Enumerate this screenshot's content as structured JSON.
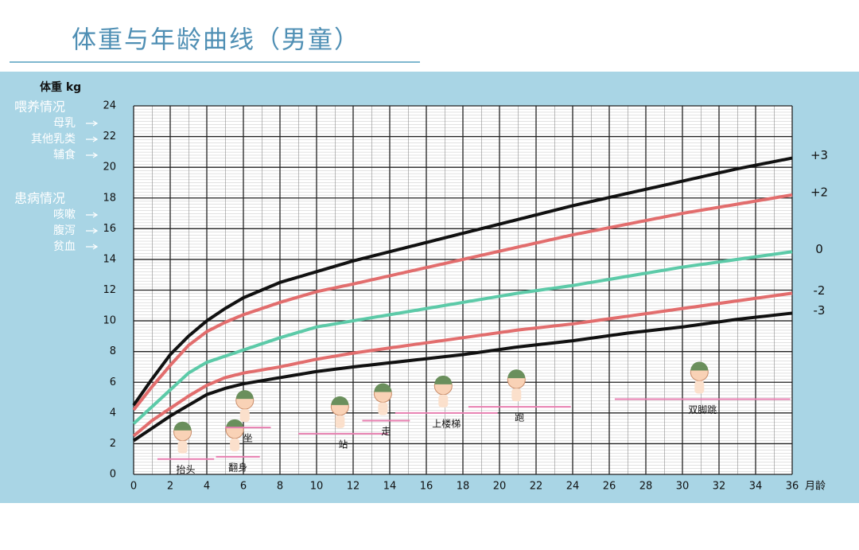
{
  "chart_data": {
    "type": "line",
    "title": "体重与年龄曲线（男童）",
    "y_label": "体重 kg",
    "x_label": "月龄",
    "x": [
      0,
      1,
      2,
      3,
      4,
      5,
      6,
      8,
      10,
      12,
      15,
      18,
      21,
      24,
      27,
      30,
      33,
      36
    ],
    "series": [
      {
        "name": "+3",
        "color": "#111111",
        "values": [
          4.5,
          6.2,
          7.8,
          9.0,
          10.0,
          10.8,
          11.5,
          12.5,
          13.2,
          13.9,
          14.8,
          15.7,
          16.6,
          17.5,
          18.3,
          19.1,
          19.9,
          20.6
        ]
      },
      {
        "name": "+2",
        "color": "#e26d6d",
        "values": [
          4.2,
          5.7,
          7.1,
          8.4,
          9.3,
          9.9,
          10.4,
          11.2,
          11.9,
          12.4,
          13.2,
          14.0,
          14.8,
          15.6,
          16.3,
          17.0,
          17.6,
          18.2
        ]
      },
      {
        "name": "0",
        "color": "#5ccaa8",
        "values": [
          3.3,
          4.4,
          5.5,
          6.6,
          7.3,
          7.7,
          8.1,
          8.9,
          9.6,
          10.0,
          10.6,
          11.2,
          11.8,
          12.3,
          12.9,
          13.5,
          14.0,
          14.5
        ]
      },
      {
        "name": "-2",
        "color": "#e26d6d",
        "values": [
          2.5,
          3.5,
          4.3,
          5.1,
          5.8,
          6.3,
          6.6,
          7.0,
          7.5,
          7.9,
          8.4,
          8.9,
          9.4,
          9.8,
          10.3,
          10.8,
          11.3,
          11.8
        ]
      },
      {
        "name": "-3",
        "color": "#111111",
        "values": [
          2.2,
          3.0,
          3.8,
          4.5,
          5.2,
          5.6,
          5.9,
          6.3,
          6.7,
          7.0,
          7.4,
          7.8,
          8.3,
          8.7,
          9.2,
          9.6,
          10.1,
          10.5
        ]
      }
    ],
    "xlim": [
      0,
      36
    ],
    "ylim": [
      0,
      24
    ],
    "xticks": [
      0,
      2,
      4,
      6,
      8,
      10,
      12,
      14,
      16,
      18,
      20,
      22,
      24,
      26,
      28,
      30,
      32,
      34,
      36
    ],
    "yticks": [
      0,
      2,
      4,
      6,
      8,
      10,
      12,
      14,
      16,
      18,
      20,
      22,
      24
    ],
    "grid": true,
    "side_notes": [
      {
        "title": "喂养情况",
        "items": [
          "母乳",
          "其他乳类",
          "辅食"
        ]
      },
      {
        "title": "患病情况",
        "items": [
          "咳嗽",
          "腹泻",
          "贫血"
        ]
      }
    ],
    "milestones": [
      {
        "label": "抬头",
        "range": [
          1.3,
          4.4
        ],
        "y": 1.0
      },
      {
        "label": "翻身",
        "range": [
          4.5,
          6.9
        ],
        "y": 1.15
      },
      {
        "label": "坐",
        "range": [
          5.0,
          7.5
        ],
        "y": 3.05
      },
      {
        "label": "站",
        "range": [
          9.0,
          13.9
        ],
        "y": 2.65
      },
      {
        "label": "走",
        "range": [
          12.5,
          15.1
        ],
        "y": 3.5
      },
      {
        "label": "上楼梯",
        "range": [
          14.3,
          19.9
        ],
        "y": 4.0
      },
      {
        "label": "跑",
        "range": [
          18.3,
          23.9
        ],
        "y": 4.4
      },
      {
        "label": "双脚跳",
        "range": [
          26.3,
          35.9
        ],
        "y": 4.9
      }
    ]
  }
}
